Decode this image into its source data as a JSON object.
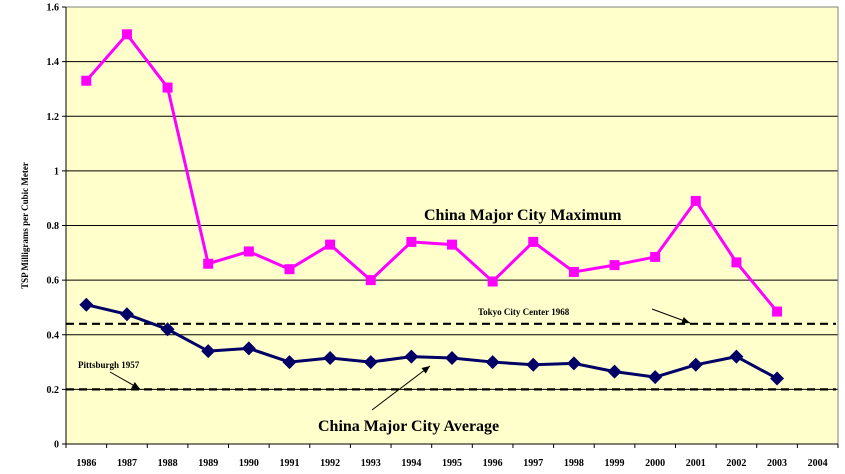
{
  "chart_data": {
    "type": "line",
    "title": "",
    "xlabel": "",
    "ylabel": "TSP Milligrams per Cubic Meter",
    "categories": [
      "1986",
      "1987",
      "1988",
      "1989",
      "1990",
      "1991",
      "1992",
      "1993",
      "1994",
      "1995",
      "1996",
      "1997",
      "1998",
      "1999",
      "2000",
      "2001",
      "2002",
      "2003",
      "2004"
    ],
    "ylim": [
      0,
      1.6
    ],
    "yticks": [
      "0",
      "0.2",
      "0.4",
      "0.6",
      "0.8",
      "1",
      "1.2",
      "1.4",
      "1.6"
    ],
    "grid": true,
    "plot_background": "#FFFFCC",
    "series": [
      {
        "name": "China Major City Maximum",
        "color": "#FF00FF",
        "marker": "square",
        "values": [
          1.33,
          1.5,
          1.305,
          0.66,
          0.705,
          0.64,
          0.73,
          0.6,
          0.74,
          0.73,
          0.595,
          0.74,
          0.63,
          0.655,
          0.685,
          0.89,
          0.665,
          0.485,
          null
        ]
      },
      {
        "name": "China Major City Average",
        "color": "#000066",
        "marker": "diamond",
        "values": [
          0.51,
          0.475,
          0.42,
          0.34,
          0.35,
          0.3,
          0.315,
          0.3,
          0.32,
          0.315,
          0.3,
          0.29,
          0.295,
          0.265,
          0.245,
          0.29,
          0.32,
          0.24,
          null
        ]
      }
    ],
    "reference_lines": [
      {
        "label": "Tokyo City Center 1968",
        "value": 0.44
      },
      {
        "label": "Pittsburgh 1957",
        "value": 0.2
      }
    ]
  }
}
